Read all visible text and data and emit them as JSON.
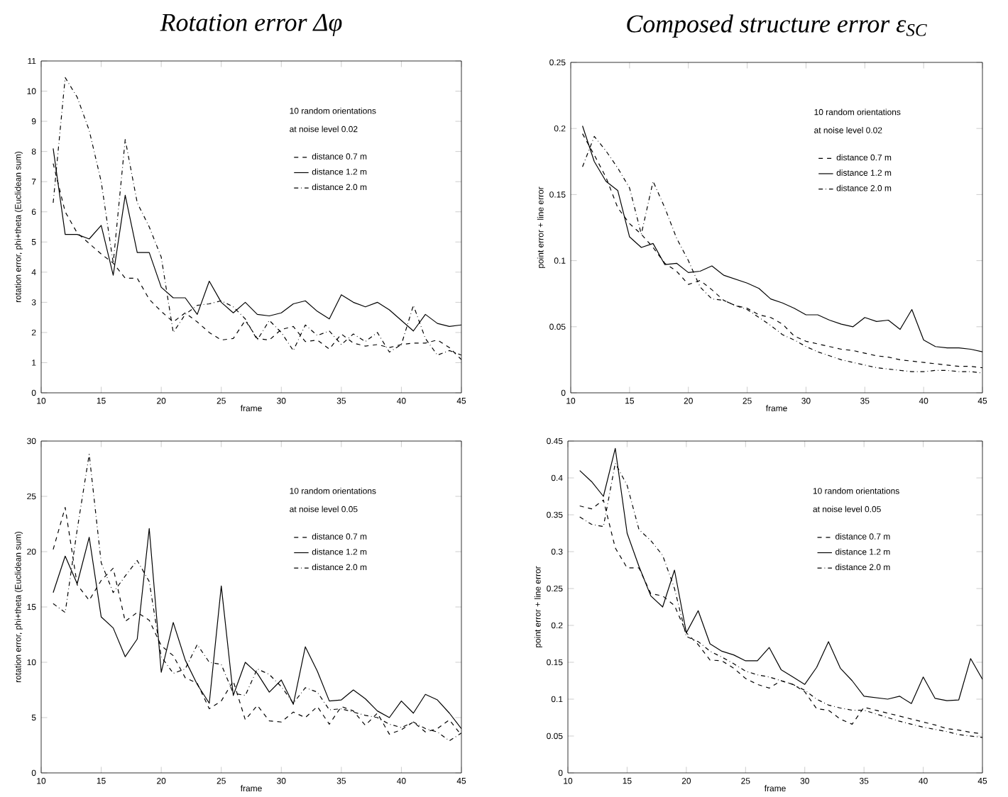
{
  "chart_data": [
    {
      "type": "line",
      "title": "Rotation error Δφ",
      "xlabel": "frame",
      "ylabel": "rotation error, phi+theta (Euclidean sum)",
      "legend": "top right",
      "annotations": [
        "10 random orientations",
        "at noise level 0.02"
      ],
      "x": [
        11,
        12,
        13,
        14,
        15,
        16,
        17,
        18,
        19,
        20,
        21,
        22,
        23,
        24,
        25,
        26,
        27,
        28,
        29,
        30,
        31,
        32,
        33,
        34,
        35,
        36,
        37,
        38,
        39,
        40,
        41,
        42,
        43,
        44,
        45
      ],
      "xlim": [
        10,
        45
      ],
      "xticks": [
        10,
        15,
        20,
        25,
        30,
        35,
        40,
        45
      ],
      "ylim": [
        0,
        11
      ],
      "yticks": [
        0,
        1,
        2,
        3,
        4,
        5,
        6,
        7,
        8,
        9,
        10,
        11
      ],
      "series": [
        {
          "name": "distance 0.7 m",
          "color": "#000000",
          "line_style": "dashed",
          "values": [
            7.6,
            6.0,
            5.3,
            4.95,
            4.6,
            4.3,
            3.8,
            3.8,
            3.1,
            2.7,
            2.35,
            2.65,
            2.35,
            2.0,
            1.75,
            1.8,
            2.4,
            1.8,
            1.75,
            2.1,
            2.2,
            1.7,
            1.75,
            1.45,
            1.95,
            1.65,
            1.55,
            1.6,
            1.5,
            1.6,
            1.65,
            1.65,
            1.75,
            1.5,
            1.1
          ]
        },
        {
          "name": "distance 1.2 m",
          "color": "#000000",
          "line_style": "solid",
          "values": [
            8.1,
            5.25,
            5.25,
            5.1,
            5.55,
            3.9,
            6.55,
            4.65,
            4.65,
            3.5,
            3.15,
            3.15,
            2.6,
            3.7,
            3.0,
            2.65,
            3.0,
            2.6,
            2.55,
            2.65,
            2.95,
            3.05,
            2.7,
            2.45,
            3.25,
            3.0,
            2.85,
            3.0,
            2.75,
            2.4,
            2.05,
            2.6,
            2.3,
            2.2,
            2.25
          ]
        },
        {
          "name": "distance 2.0 m",
          "color": "#000000",
          "line_style": "dashdot",
          "values": [
            6.3,
            10.45,
            9.8,
            8.7,
            7.0,
            4.3,
            8.4,
            6.3,
            5.5,
            4.5,
            2.0,
            2.6,
            2.9,
            2.95,
            3.05,
            2.85,
            2.45,
            1.75,
            2.4,
            2.0,
            1.4,
            2.25,
            1.9,
            2.05,
            1.6,
            1.95,
            1.7,
            2.0,
            1.35,
            1.6,
            2.9,
            1.8,
            1.25,
            1.4,
            1.25
          ]
        }
      ]
    },
    {
      "type": "line",
      "title": "Composed structure error ε$_{SC}$",
      "xlabel": "frame",
      "ylabel": "point error + line error",
      "legend": "top right",
      "annotations": [
        "10 random orientations",
        "at noise level 0.02"
      ],
      "x": [
        11,
        12,
        13,
        14,
        15,
        16,
        17,
        18,
        19,
        20,
        21,
        22,
        23,
        24,
        25,
        26,
        27,
        28,
        29,
        30,
        31,
        32,
        33,
        34,
        35,
        36,
        37,
        38,
        39,
        40,
        41,
        42,
        43,
        44,
        45
      ],
      "xlim": [
        10,
        45
      ],
      "xticks": [
        10,
        15,
        20,
        25,
        30,
        35,
        40,
        45
      ],
      "ylim": [
        0,
        0.25
      ],
      "yticks": [
        0,
        0.05,
        0.1,
        0.15,
        0.2,
        0.25
      ],
      "series": [
        {
          "name": "distance 0.7 m",
          "color": "#000000",
          "line_style": "dashed",
          "values": [
            0.196,
            0.18,
            0.163,
            0.14,
            0.128,
            0.12,
            0.11,
            0.098,
            0.092,
            0.082,
            0.085,
            0.078,
            0.07,
            0.066,
            0.064,
            0.059,
            0.057,
            0.052,
            0.043,
            0.039,
            0.037,
            0.035,
            0.033,
            0.032,
            0.03,
            0.028,
            0.027,
            0.025,
            0.024,
            0.023,
            0.022,
            0.021,
            0.02,
            0.02,
            0.019
          ]
        },
        {
          "name": "distance 1.2 m",
          "color": "#000000",
          "line_style": "solid",
          "values": [
            0.202,
            0.175,
            0.16,
            0.153,
            0.118,
            0.11,
            0.113,
            0.097,
            0.098,
            0.091,
            0.092,
            0.096,
            0.089,
            0.086,
            0.083,
            0.079,
            0.071,
            0.068,
            0.064,
            0.059,
            0.059,
            0.055,
            0.052,
            0.05,
            0.057,
            0.054,
            0.055,
            0.048,
            0.063,
            0.04,
            0.035,
            0.034,
            0.034,
            0.033,
            0.031
          ]
        },
        {
          "name": "distance 2.0 m",
          "color": "#000000",
          "line_style": "dashdot",
          "values": [
            0.171,
            0.194,
            0.183,
            0.17,
            0.155,
            0.12,
            0.16,
            0.14,
            0.117,
            0.1,
            0.08,
            0.071,
            0.07,
            0.066,
            0.063,
            0.057,
            0.051,
            0.044,
            0.04,
            0.035,
            0.031,
            0.028,
            0.025,
            0.023,
            0.021,
            0.019,
            0.018,
            0.017,
            0.016,
            0.016,
            0.017,
            0.017,
            0.016,
            0.016,
            0.015
          ]
        }
      ]
    },
    {
      "type": "line",
      "xlabel": "frame",
      "ylabel": "rotation error, phi+theta (Euclidean sum)",
      "legend": "top right",
      "annotations": [
        "10 random orientations",
        "at noise level 0.05"
      ],
      "x": [
        11,
        12,
        13,
        14,
        15,
        16,
        17,
        18,
        19,
        20,
        21,
        22,
        23,
        24,
        25,
        26,
        27,
        28,
        29,
        30,
        31,
        32,
        33,
        34,
        35,
        36,
        37,
        38,
        39,
        40,
        41,
        42,
        43,
        44,
        45
      ],
      "xlim": [
        10,
        45
      ],
      "xticks": [
        10,
        15,
        20,
        25,
        30,
        35,
        40,
        45
      ],
      "ylim": [
        0,
        30
      ],
      "yticks": [
        0,
        5,
        10,
        15,
        20,
        25,
        30
      ],
      "series": [
        {
          "name": "distance 0.7 m",
          "color": "#000000",
          "line_style": "dashed",
          "values": [
            20.2,
            24.0,
            17.0,
            15.6,
            17.4,
            18.5,
            13.7,
            14.5,
            13.8,
            11.5,
            10.6,
            8.6,
            8.1,
            5.8,
            6.5,
            8.3,
            4.8,
            6.1,
            4.7,
            4.6,
            5.5,
            5.0,
            6.0,
            4.4,
            6.0,
            5.6,
            4.3,
            5.4,
            3.5,
            3.9,
            4.6,
            3.7,
            4.0,
            4.8,
            3.4
          ]
        },
        {
          "name": "distance 1.2 m",
          "color": "#000000",
          "line_style": "solid",
          "values": [
            16.3,
            19.6,
            17.1,
            21.3,
            14.1,
            13.1,
            10.5,
            12.1,
            22.1,
            9.1,
            13.6,
            10.2,
            8.0,
            6.3,
            16.9,
            7.0,
            10.0,
            9.0,
            7.3,
            8.4,
            6.2,
            11.4,
            9.2,
            6.5,
            6.6,
            7.5,
            6.7,
            5.6,
            5.0,
            6.5,
            5.4,
            7.1,
            6.6,
            5.4,
            4.0
          ]
        },
        {
          "name": "distance 2.0 m",
          "color": "#000000",
          "line_style": "dashdot",
          "values": [
            15.3,
            14.5,
            22.0,
            28.8,
            19.0,
            16.3,
            17.8,
            19.2,
            17.3,
            10.5,
            9.0,
            9.4,
            11.6,
            10.0,
            9.8,
            7.2,
            7.0,
            9.4,
            8.9,
            7.8,
            6.3,
            7.7,
            7.3,
            5.7,
            5.8,
            5.5,
            5.2,
            5.0,
            4.4,
            4.1,
            4.6,
            4.0,
            3.7,
            2.9,
            3.6
          ]
        }
      ]
    },
    {
      "type": "line",
      "xlabel": "frame",
      "ylabel": "point error + line error",
      "legend": "top right",
      "annotations": [
        "10 random orientations",
        "at noise level 0.05"
      ],
      "x": [
        11,
        12,
        13,
        14,
        15,
        16,
        17,
        18,
        19,
        20,
        21,
        22,
        23,
        24,
        25,
        26,
        27,
        28,
        29,
        30,
        31,
        32,
        33,
        34,
        35,
        36,
        37,
        38,
        39,
        40,
        41,
        42,
        43,
        44,
        45
      ],
      "xlim": [
        10,
        45
      ],
      "xticks": [
        10,
        15,
        20,
        25,
        30,
        35,
        40,
        45
      ],
      "ylim": [
        0,
        0.45
      ],
      "yticks": [
        0,
        0.05,
        0.1,
        0.15,
        0.2,
        0.25,
        0.3,
        0.35,
        0.4,
        0.45
      ],
      "series": [
        {
          "name": "distance 0.7 m",
          "color": "#000000",
          "line_style": "dashed",
          "values": [
            0.362,
            0.358,
            0.37,
            0.305,
            0.278,
            0.278,
            0.243,
            0.24,
            0.227,
            0.19,
            0.174,
            0.153,
            0.152,
            0.142,
            0.128,
            0.12,
            0.115,
            0.125,
            0.12,
            0.11,
            0.087,
            0.085,
            0.073,
            0.066,
            0.089,
            0.085,
            0.081,
            0.077,
            0.073,
            0.069,
            0.065,
            0.06,
            0.058,
            0.055,
            0.053
          ]
        },
        {
          "name": "distance 1.2 m",
          "color": "#000000",
          "line_style": "solid",
          "values": [
            0.41,
            0.395,
            0.375,
            0.44,
            0.325,
            0.28,
            0.24,
            0.225,
            0.275,
            0.19,
            0.22,
            0.175,
            0.165,
            0.16,
            0.152,
            0.152,
            0.17,
            0.14,
            0.13,
            0.12,
            0.143,
            0.178,
            0.142,
            0.125,
            0.104,
            0.102,
            0.1,
            0.104,
            0.094,
            0.13,
            0.101,
            0.098,
            0.099,
            0.155,
            0.127
          ]
        },
        {
          "name": "distance 2.0 m",
          "color": "#000000",
          "line_style": "dashdot",
          "values": [
            0.347,
            0.337,
            0.334,
            0.42,
            0.39,
            0.33,
            0.315,
            0.295,
            0.25,
            0.185,
            0.178,
            0.165,
            0.157,
            0.148,
            0.138,
            0.133,
            0.13,
            0.125,
            0.12,
            0.112,
            0.1,
            0.092,
            0.088,
            0.085,
            0.085,
            0.08,
            0.075,
            0.07,
            0.066,
            0.062,
            0.059,
            0.056,
            0.052,
            0.05,
            0.048
          ]
        }
      ]
    }
  ]
}
